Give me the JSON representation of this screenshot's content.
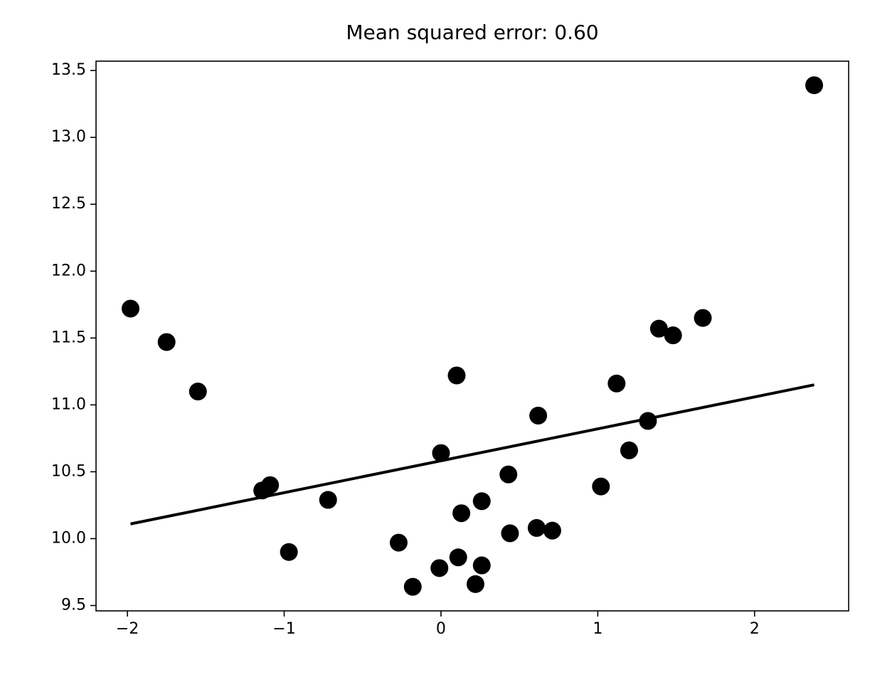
{
  "chart_data": {
    "type": "scatter",
    "title": "Mean squared error: 0.60",
    "x": [
      -1.98,
      -1.75,
      -1.55,
      -1.14,
      -1.09,
      -0.97,
      -0.72,
      -0.27,
      -0.18,
      -0.01,
      0.0,
      0.1,
      0.11,
      0.13,
      0.22,
      0.26,
      0.26,
      0.43,
      0.44,
      0.61,
      0.62,
      0.71,
      1.02,
      1.12,
      1.2,
      1.32,
      1.39,
      1.48,
      1.67,
      2.38
    ],
    "values": [
      11.72,
      11.47,
      11.1,
      10.36,
      10.4,
      9.9,
      10.29,
      9.97,
      9.64,
      9.78,
      10.64,
      11.22,
      9.86,
      10.19,
      9.66,
      10.28,
      9.8,
      10.48,
      10.04,
      10.08,
      10.92,
      10.06,
      10.39,
      11.16,
      10.66,
      10.88,
      11.57,
      11.52,
      11.65,
      13.39
    ],
    "color": "#000000",
    "fit": {
      "type": "line",
      "x": [
        -1.98,
        2.38
      ],
      "values": [
        10.11,
        11.15
      ],
      "color": "#000000"
    },
    "xlim": [
      -2.2,
      2.6
    ],
    "xticks": [
      {
        "value": -2,
        "label": "−2"
      },
      {
        "value": -1,
        "label": "−1"
      },
      0,
      1,
      2
    ],
    "ylim": [
      9.46,
      13.57
    ],
    "yticks": [
      9.5,
      {
        "value": 10,
        "label": "10.0"
      },
      10.5,
      {
        "value": 11,
        "label": "11.0"
      },
      11.5,
      {
        "value": 12,
        "label": "12.0"
      },
      12.5,
      {
        "value": 13,
        "label": "13.0"
      },
      13.5
    ],
    "grid": false
  }
}
